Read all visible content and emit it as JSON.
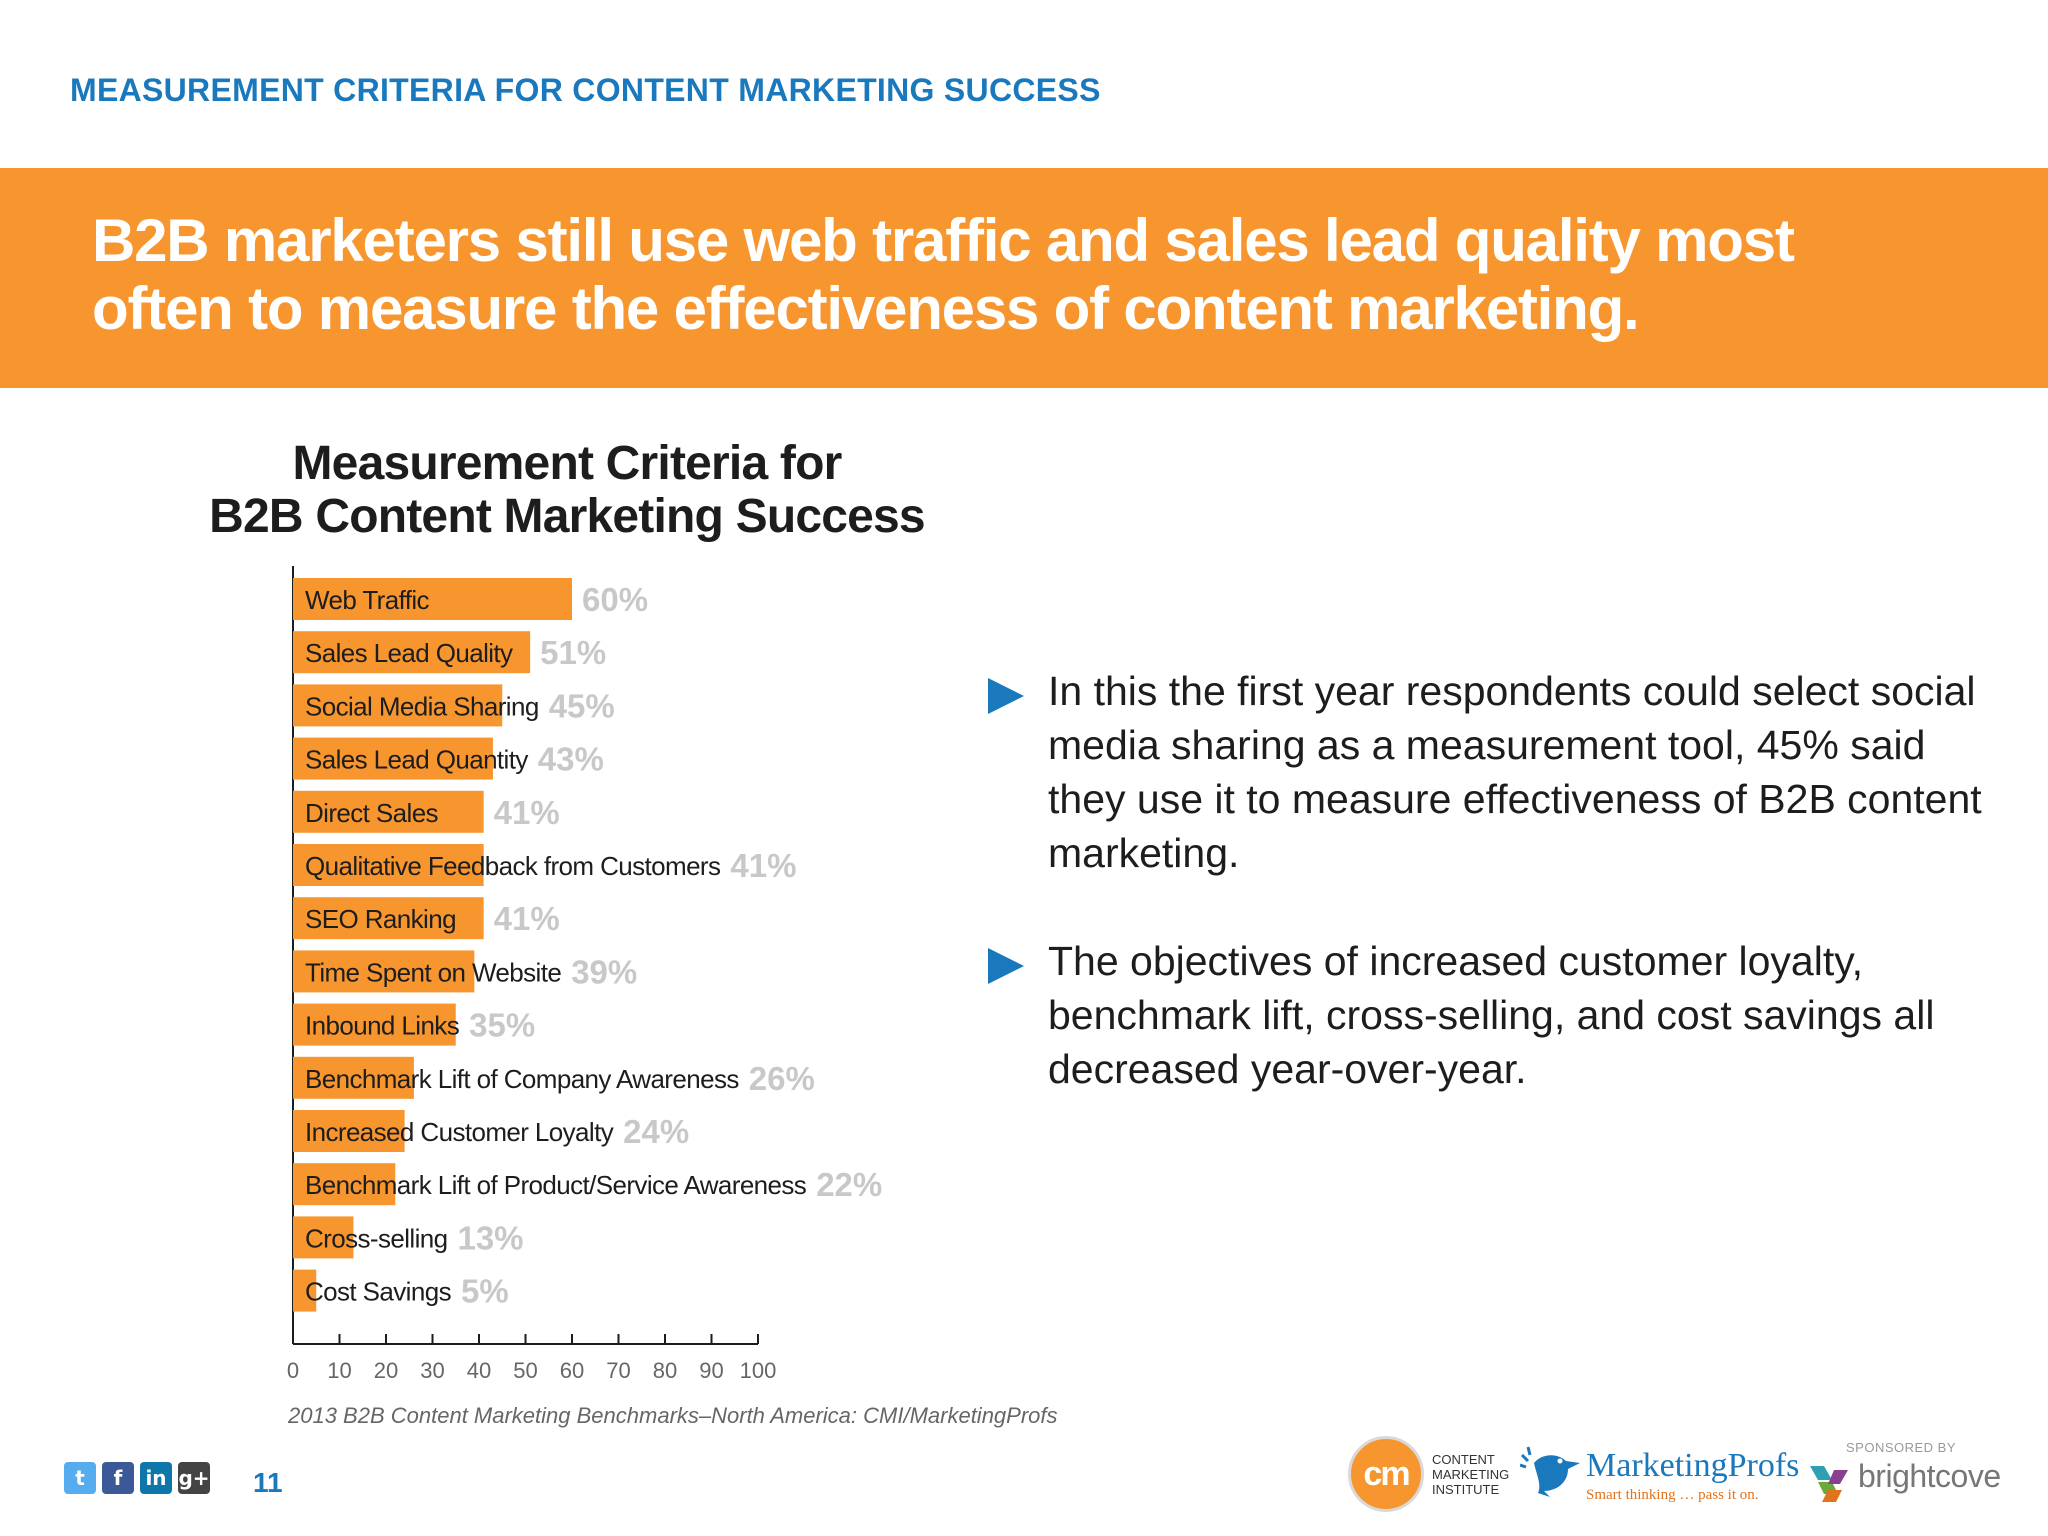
{
  "header": {
    "section_title": "MEASUREMENT CRITERIA FOR CONTENT MARKETING SUCCESS",
    "headline_line1": "B2B marketers still use web traffic and sales lead quality most",
    "headline_line2": "often to measure the effectiveness of content marketing."
  },
  "chart_data": {
    "type": "bar",
    "orientation": "horizontal",
    "title_line1": "Measurement Criteria for",
    "title_line2": "B2B Content Marketing Success",
    "categories": [
      "Web Traffic",
      "Sales Lead Quality",
      "Social Media Sharing",
      "Sales Lead Quantity",
      "Direct Sales",
      "Qualitative Feedback from Customers",
      "SEO Ranking",
      "Time Spent on Website",
      "Inbound Links",
      "Benchmark Lift of Company Awareness",
      "Increased Customer Loyalty",
      "Benchmark Lift of Product/Service Awareness",
      "Cross-selling",
      "Cost Savings"
    ],
    "values": [
      60,
      51,
      45,
      43,
      41,
      41,
      41,
      39,
      35,
      26,
      24,
      22,
      13,
      5
    ],
    "value_labels": [
      "60%",
      "51%",
      "45%",
      "43%",
      "41%",
      "41%",
      "41%",
      "39%",
      "35%",
      "26%",
      "24%",
      "22%",
      "13%",
      "5%"
    ],
    "xlim": [
      0,
      100
    ],
    "x_ticks": [
      "0",
      "10",
      "20",
      "30",
      "40",
      "50",
      "60",
      "70",
      "80",
      "90",
      "100"
    ],
    "bar_color": "#f7962f",
    "value_label_color": "#c8c8c8",
    "grid": false,
    "legend": "none"
  },
  "bullets": [
    "In this the first year respondents could select social media sharing as a measurement tool, 45% said they use it to measure effectiveness of B2B content marketing.",
    "The objectives of increased customer loyalty, benchmark lift, cross-selling, and cost savings all decreased year-over-year."
  ],
  "source": "2013 B2B Content Marketing Benchmarks–North America: CMI/MarketingProfs",
  "footer": {
    "social_icons": [
      {
        "name": "twitter-icon",
        "glyph": "t",
        "color": "#55acee"
      },
      {
        "name": "facebook-icon",
        "glyph": "f",
        "color": "#3b5998"
      },
      {
        "name": "linkedin-icon",
        "glyph": "in",
        "color": "#0e76a8"
      },
      {
        "name": "googleplus-icon",
        "glyph": "g+",
        "color": "#444444"
      }
    ],
    "page_number": "11",
    "cmi_mark": "cm",
    "cmi_text": "CONTENT\nMARKETING\nINSTITUTE",
    "marketingprofs_name": "MarketingProfs",
    "marketingprofs_tagline": "Smart thinking … pass it on.",
    "sponsor_label": "SPONSORED BY",
    "sponsor_name": "brightcove"
  },
  "colors": {
    "accent_blue": "#1a78bd",
    "banner_orange": "#f7962f"
  }
}
